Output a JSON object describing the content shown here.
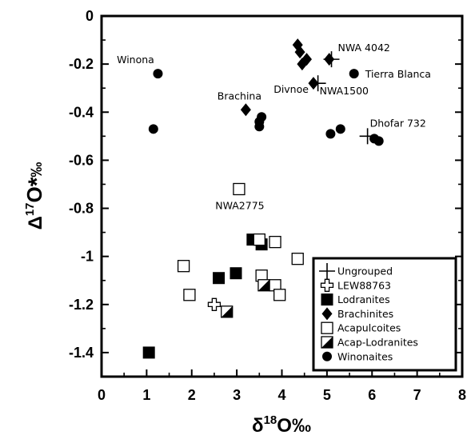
{
  "chart_data": {
    "type": "scatter",
    "xlabel": {
      "base": "δ",
      "sup": "18",
      "main": "O‰"
    },
    "ylabel": {
      "base": "Δ",
      "sup": "17",
      "main": "O",
      "star": "*",
      "unit": "‰"
    },
    "xlim": [
      0,
      8
    ],
    "ylim": [
      -1.5,
      0
    ],
    "x_ticks": [
      0,
      1,
      2,
      3,
      4,
      5,
      6,
      7,
      8
    ],
    "x_tick_labels": [
      "0",
      "1",
      "2",
      "3",
      "4",
      "5",
      "6",
      "7",
      "8"
    ],
    "y_ticks": [
      0,
      -0.2,
      -0.4,
      -0.6,
      -0.8,
      -1,
      -1.2,
      -1.4
    ],
    "y_tick_labels": [
      "0",
      "-0.2",
      "-0.4",
      "-0.6",
      "-0.8",
      "-1",
      "-1.2",
      "-1.4"
    ],
    "grid": false,
    "legend_position": "bottom-right",
    "series": [
      {
        "name": "Ungrouped",
        "marker": "plus",
        "points": [
          [
            5.1,
            -0.18
          ],
          [
            4.8,
            -0.28
          ],
          [
            5.9,
            -0.5
          ]
        ]
      },
      {
        "name": "LEW88763",
        "marker": "open-cross",
        "points": [
          [
            2.5,
            -1.2
          ]
        ]
      },
      {
        "name": "Lodranites",
        "marker": "filled-square",
        "points": [
          [
            1.05,
            -1.4
          ],
          [
            2.6,
            -1.09
          ],
          [
            2.98,
            -1.07
          ],
          [
            3.35,
            -0.93
          ],
          [
            3.55,
            -0.95
          ]
        ]
      },
      {
        "name": "Brachinites",
        "marker": "filled-diamond",
        "points": [
          [
            4.35,
            -0.12
          ],
          [
            4.4,
            -0.15
          ],
          [
            4.55,
            -0.18
          ],
          [
            4.45,
            -0.2
          ],
          [
            5.05,
            -0.18
          ],
          [
            4.7,
            -0.28
          ],
          [
            3.2,
            -0.39
          ]
        ]
      },
      {
        "name": "Acapulcoites",
        "marker": "open-square",
        "points": [
          [
            3.05,
            -0.72
          ],
          [
            3.5,
            -0.93
          ],
          [
            3.85,
            -0.94
          ],
          [
            4.35,
            -1.01
          ],
          [
            1.82,
            -1.04
          ],
          [
            3.55,
            -1.08
          ],
          [
            3.85,
            -1.12
          ],
          [
            3.95,
            -1.16
          ],
          [
            1.95,
            -1.16
          ]
        ]
      },
      {
        "name": "Acap-Lodranites",
        "marker": "half-square",
        "points": [
          [
            2.78,
            -1.23
          ],
          [
            3.6,
            -1.12
          ]
        ]
      },
      {
        "name": "Winonaites",
        "marker": "filled-circle",
        "points": [
          [
            1.25,
            -0.24
          ],
          [
            1.15,
            -0.47
          ],
          [
            3.55,
            -0.42
          ],
          [
            3.5,
            -0.44
          ],
          [
            3.5,
            -0.46
          ],
          [
            5.08,
            -0.49
          ],
          [
            5.3,
            -0.47
          ],
          [
            5.6,
            -0.24
          ],
          [
            6.05,
            -0.51
          ],
          [
            6.15,
            -0.52
          ]
        ]
      }
    ],
    "annotations": [
      {
        "text": "Winona",
        "x": 1.25,
        "y": -0.24
      },
      {
        "text": "NWA 4042",
        "x": 5.1,
        "y": -0.18
      },
      {
        "text": "Tierra Blanca",
        "x": 5.6,
        "y": -0.24
      },
      {
        "text": "Brachina",
        "x": 3.2,
        "y": -0.39
      },
      {
        "text": "Divnoe",
        "x": 4.7,
        "y": -0.28
      },
      {
        "text": "NWA1500",
        "x": 4.8,
        "y": -0.28
      },
      {
        "text": "Dhofar 732",
        "x": 5.9,
        "y": -0.5
      },
      {
        "text": "NWA2775",
        "x": 3.05,
        "y": -0.72
      }
    ]
  }
}
